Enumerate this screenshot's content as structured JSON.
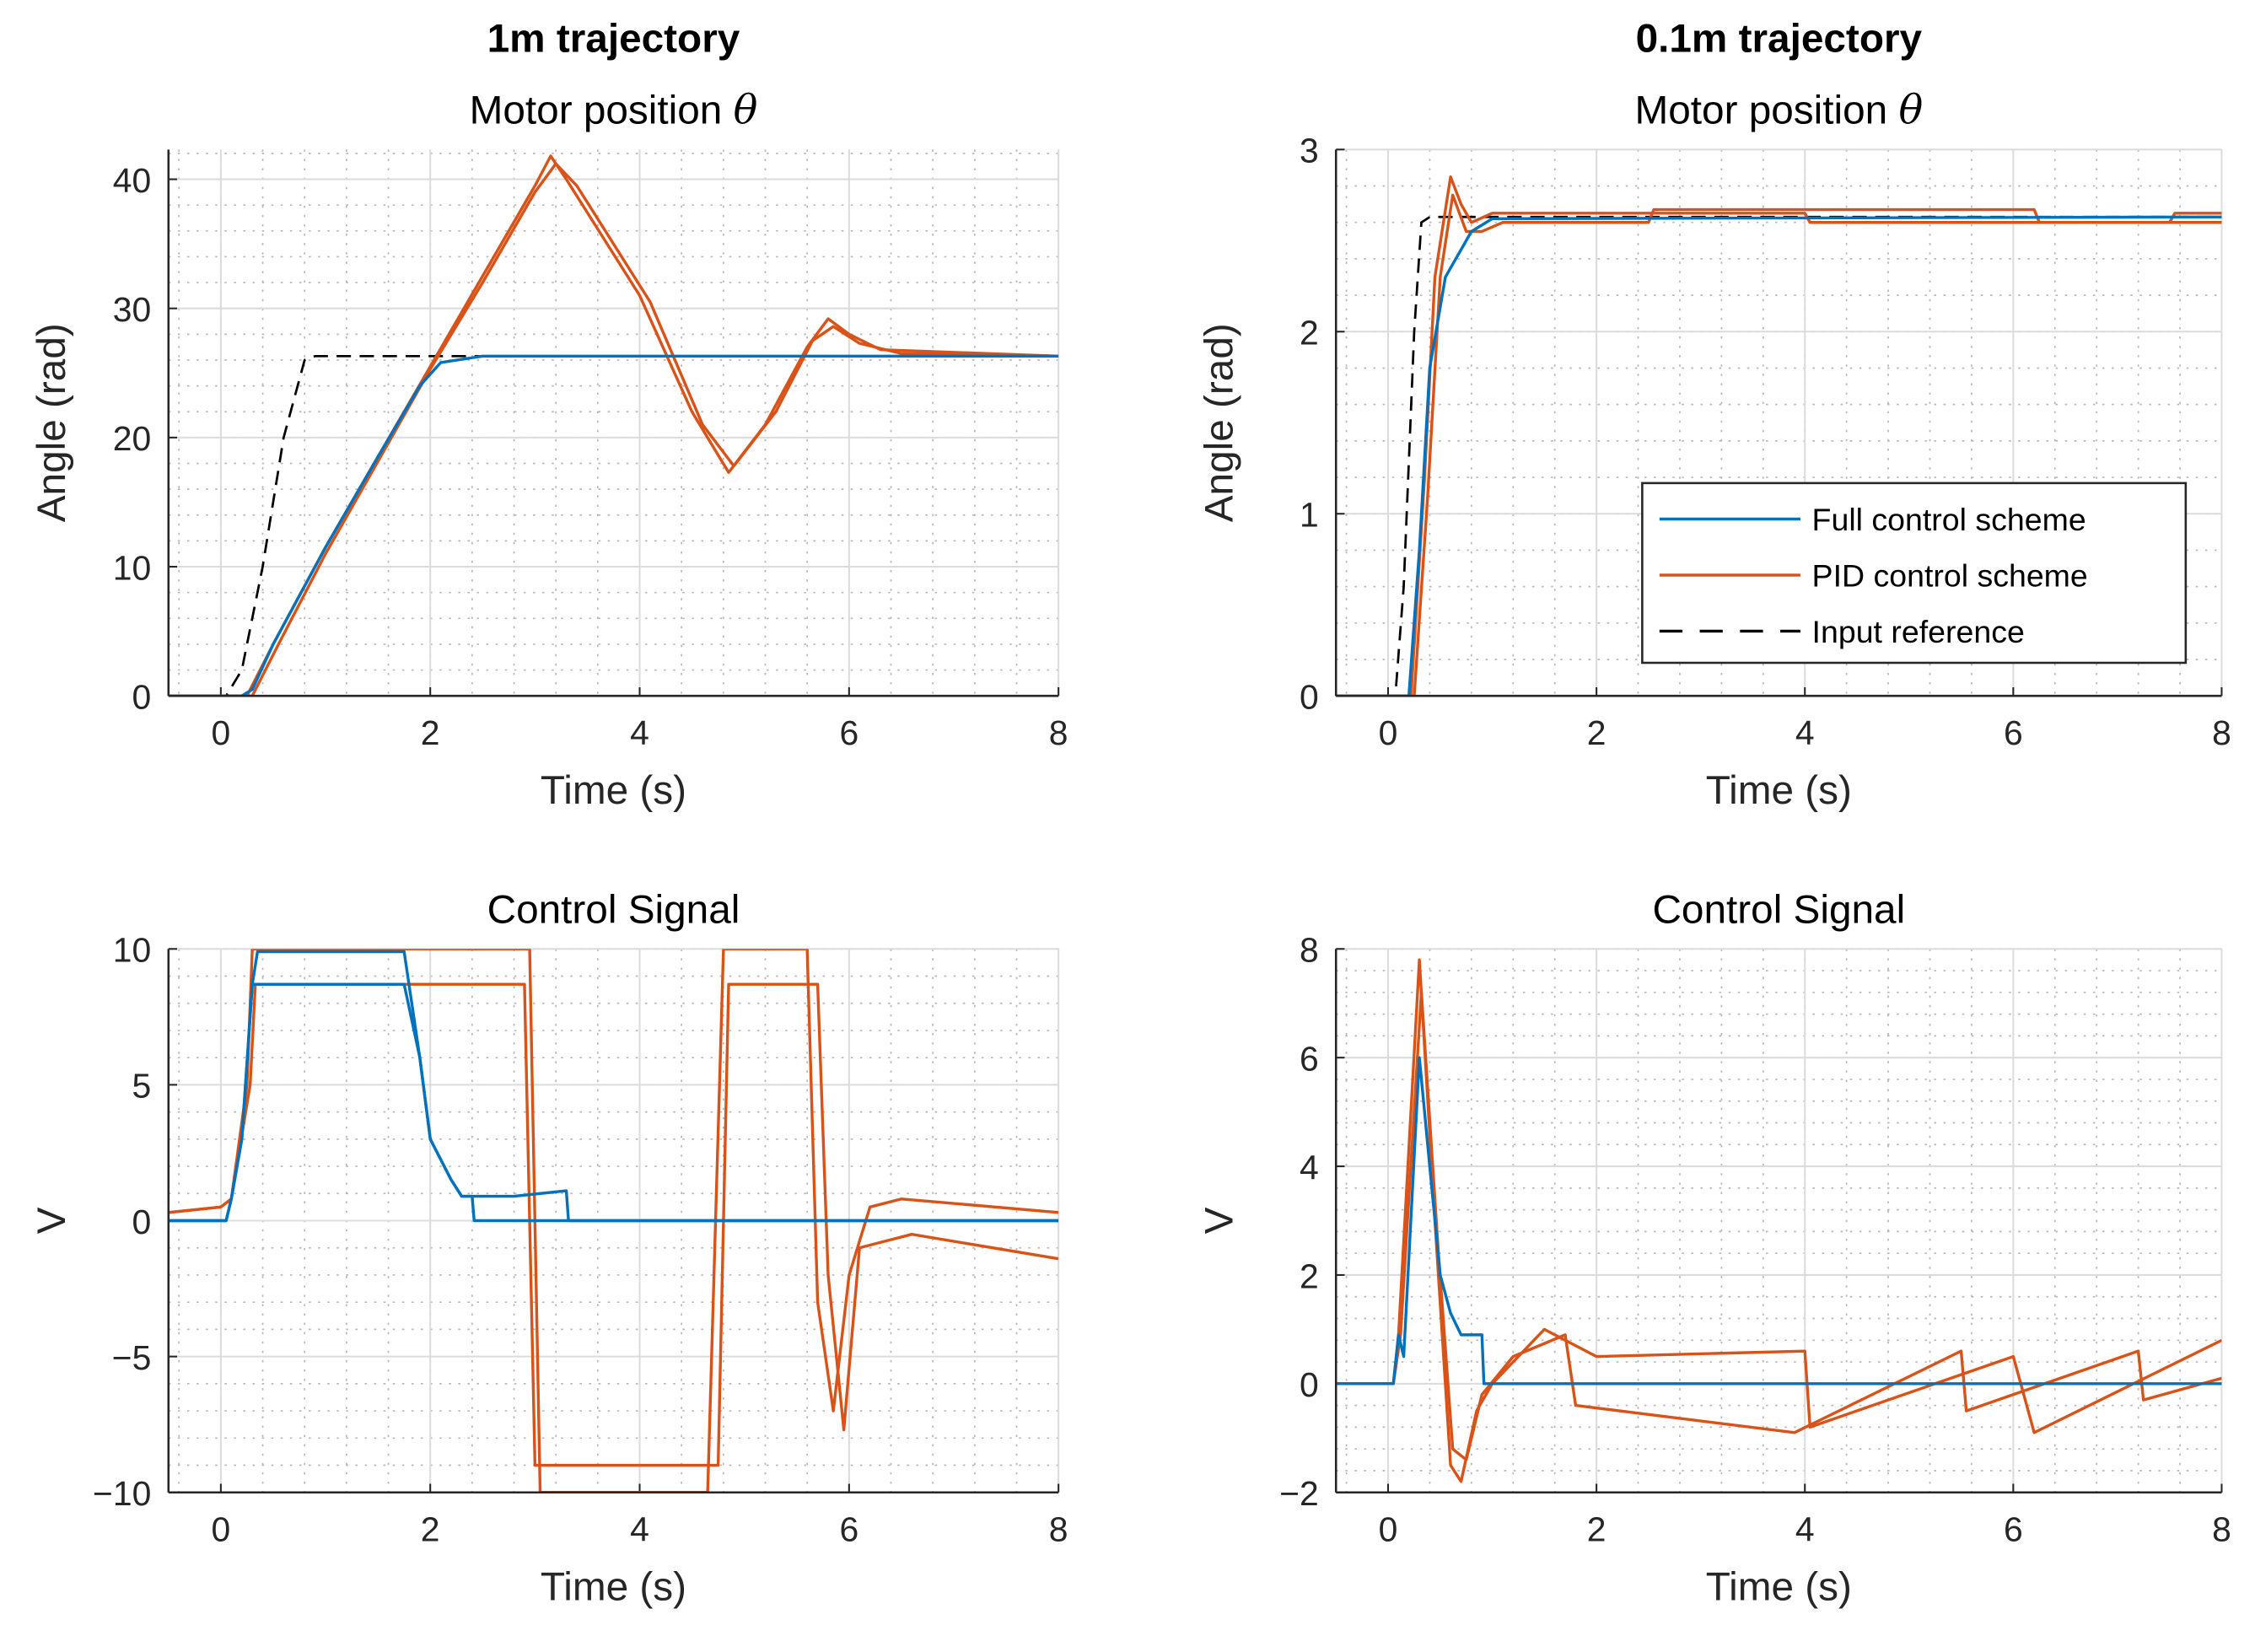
{
  "colors": {
    "full": "#0072BD",
    "pid": "#D95319",
    "ref": "#000000"
  },
  "legend": [
    "Full control scheme",
    "PID control scheme",
    "Input reference"
  ],
  "chart_data": [
    {
      "type": "line",
      "supertitle": "1m trajectory",
      "title": "Motor position",
      "title_symbol": "θ",
      "xlabel": "Time (s)",
      "ylabel": "Angle (rad)",
      "xlim": [
        -0.5,
        8
      ],
      "ylim": [
        0,
        42.3
      ],
      "xticks": [
        0,
        2,
        4,
        6,
        8
      ],
      "xtick_labels": [
        "0",
        "2",
        "4",
        "6",
        "8"
      ],
      "yticks": [
        0,
        10,
        20,
        30,
        40
      ],
      "ytick_labels": [
        "0",
        "10",
        "20",
        "30",
        "40"
      ],
      "xminor": 0.4,
      "yminor": 2,
      "grid": true,
      "series": [
        {
          "name": "Input reference",
          "style": "dashed",
          "color": "ref",
          "runs": [
            [
              [
                -0.5,
                0
              ],
              [
                0.05,
                0
              ],
              [
                0.2,
                2
              ],
              [
                0.4,
                10
              ],
              [
                0.6,
                20
              ],
              [
                0.8,
                26
              ],
              [
                0.9,
                26.3
              ],
              [
                8,
                26.3
              ]
            ]
          ]
        },
        {
          "name": "PID control scheme",
          "color": "pid",
          "runs": [
            [
              [
                -0.5,
                0
              ],
              [
                0.25,
                0
              ],
              [
                0.5,
                4
              ],
              [
                1,
                11.5
              ],
              [
                2,
                25.5
              ],
              [
                2.5,
                32.5
              ],
              [
                3,
                39.5
              ],
              [
                3.15,
                41.8
              ],
              [
                3.3,
                40
              ],
              [
                4,
                31
              ],
              [
                4.5,
                22
              ],
              [
                4.85,
                17.3
              ],
              [
                5.2,
                21
              ],
              [
                5.6,
                27
              ],
              [
                5.8,
                29.2
              ],
              [
                6,
                28
              ],
              [
                6.3,
                26.8
              ],
              [
                8,
                26.3
              ]
            ],
            [
              [
                -0.5,
                0
              ],
              [
                0.3,
                0
              ],
              [
                0.55,
                4
              ],
              [
                1,
                11
              ],
              [
                2,
                25.3
              ],
              [
                2.5,
                32
              ],
              [
                3,
                39
              ],
              [
                3.2,
                41.2
              ],
              [
                3.4,
                39.5
              ],
              [
                4.1,
                30.5
              ],
              [
                4.6,
                21
              ],
              [
                4.9,
                17.8
              ],
              [
                5.3,
                22
              ],
              [
                5.65,
                27.5
              ],
              [
                5.85,
                28.6
              ],
              [
                6.1,
                27.3
              ],
              [
                6.5,
                26.5
              ],
              [
                8,
                26.3
              ]
            ]
          ]
        },
        {
          "name": "Full control scheme",
          "color": "full",
          "runs": [
            [
              [
                -0.5,
                0
              ],
              [
                0.2,
                0
              ],
              [
                0.3,
                0.5
              ],
              [
                0.5,
                4
              ],
              [
                1,
                11.5
              ],
              [
                1.5,
                18.5
              ],
              [
                1.9,
                24
              ],
              [
                2.1,
                25.8
              ],
              [
                2.5,
                26.3
              ],
              [
                8,
                26.3
              ]
            ]
          ]
        }
      ]
    },
    {
      "type": "line",
      "supertitle": "0.1m trajectory",
      "title": "Motor position",
      "title_symbol": "θ",
      "xlabel": "Time (s)",
      "ylabel": "Angle (rad)",
      "xlim": [
        -0.5,
        8
      ],
      "ylim": [
        0,
        3
      ],
      "xticks": [
        0,
        2,
        4,
        6,
        8
      ],
      "xtick_labels": [
        "0",
        "2",
        "4",
        "6",
        "8"
      ],
      "yticks": [
        0,
        1,
        2,
        3
      ],
      "ytick_labels": [
        "0",
        "1",
        "2",
        "3"
      ],
      "xminor": 0.4,
      "yminor": 0.2,
      "grid": true,
      "legend_position": "bottom-right",
      "series": [
        {
          "name": "Input reference",
          "style": "dashed",
          "color": "ref",
          "runs": [
            [
              [
                -0.5,
                0
              ],
              [
                0.07,
                0
              ],
              [
                0.15,
                0.6
              ],
              [
                0.25,
                2
              ],
              [
                0.32,
                2.6
              ],
              [
                0.4,
                2.63
              ],
              [
                8,
                2.63
              ]
            ]
          ]
        },
        {
          "name": "PID control scheme",
          "color": "pid",
          "runs": [
            [
              [
                -0.5,
                0
              ],
              [
                0.22,
                0
              ],
              [
                0.35,
                1.2
              ],
              [
                0.45,
                2.3
              ],
              [
                0.6,
                2.85
              ],
              [
                0.7,
                2.7
              ],
              [
                0.8,
                2.6
              ],
              [
                1,
                2.65
              ],
              [
                4,
                2.65
              ],
              [
                4.05,
                2.6
              ],
              [
                7.5,
                2.6
              ],
              [
                7.55,
                2.65
              ],
              [
                8,
                2.65
              ]
            ],
            [
              [
                -0.5,
                0
              ],
              [
                0.25,
                0
              ],
              [
                0.38,
                1.1
              ],
              [
                0.5,
                2.3
              ],
              [
                0.62,
                2.75
              ],
              [
                0.75,
                2.55
              ],
              [
                0.9,
                2.55
              ],
              [
                1.1,
                2.6
              ],
              [
                2.5,
                2.6
              ],
              [
                2.55,
                2.67
              ],
              [
                6.2,
                2.67
              ],
              [
                6.25,
                2.6
              ],
              [
                8,
                2.6
              ]
            ]
          ]
        },
        {
          "name": "Full control scheme",
          "color": "full",
          "runs": [
            [
              [
                -0.5,
                0
              ],
              [
                0.2,
                0
              ],
              [
                0.3,
                0.8
              ],
              [
                0.4,
                1.8
              ],
              [
                0.55,
                2.3
              ],
              [
                0.8,
                2.55
              ],
              [
                1,
                2.62
              ],
              [
                8,
                2.63
              ]
            ]
          ]
        }
      ]
    },
    {
      "type": "line",
      "title": "Control Signal",
      "xlabel": "Time (s)",
      "ylabel": "V",
      "xlim": [
        -0.5,
        8
      ],
      "ylim": [
        -10,
        10
      ],
      "xticks": [
        0,
        2,
        4,
        6,
        8
      ],
      "xtick_labels": [
        "0",
        "2",
        "4",
        "6",
        "8"
      ],
      "yticks": [
        -10,
        -5,
        0,
        5,
        10
      ],
      "ytick_labels": [
        "−10",
        "−5",
        "0",
        "5",
        "10"
      ],
      "xminor": 0.4,
      "yminor": 1,
      "grid": true,
      "series": [
        {
          "name": "PID control scheme",
          "color": "pid",
          "runs": [
            [
              [
                -0.5,
                0.3
              ],
              [
                0,
                0.5
              ],
              [
                0.1,
                0.8
              ],
              [
                0.25,
                5
              ],
              [
                0.3,
                10
              ],
              [
                2.95,
                10
              ],
              [
                3.05,
                -10
              ],
              [
                4.65,
                -10
              ],
              [
                4.8,
                10
              ],
              [
                5.6,
                10
              ],
              [
                5.7,
                -3
              ],
              [
                5.85,
                -7
              ],
              [
                6,
                -2
              ],
              [
                6.2,
                0.5
              ],
              [
                6.5,
                0.8
              ],
              [
                8,
                0.3
              ]
            ],
            [
              [
                -0.5,
                0.3
              ],
              [
                0,
                0.5
              ],
              [
                0.1,
                0.8
              ],
              [
                0.28,
                5
              ],
              [
                0.33,
                8.7
              ],
              [
                2.9,
                8.7
              ],
              [
                3.0,
                -9
              ],
              [
                4.75,
                -9
              ],
              [
                4.85,
                8.7
              ],
              [
                5.7,
                8.7
              ],
              [
                5.8,
                -2
              ],
              [
                5.95,
                -7.7
              ],
              [
                6.1,
                -1
              ],
              [
                6.3,
                -0.8
              ],
              [
                6.6,
                -0.5
              ],
              [
                8,
                -1.4
              ]
            ]
          ]
        },
        {
          "name": "Full control scheme",
          "color": "full",
          "runs": [
            [
              [
                -0.5,
                0
              ],
              [
                0.05,
                0
              ],
              [
                0.1,
                0.8
              ],
              [
                0.2,
                3
              ],
              [
                0.3,
                8.7
              ],
              [
                0.35,
                9.9
              ],
              [
                1.75,
                9.9
              ],
              [
                1.9,
                6
              ],
              [
                2,
                3
              ],
              [
                2.2,
                1.5
              ],
              [
                2.3,
                0.9
              ],
              [
                2.8,
                0.9
              ],
              [
                3.3,
                1.1
              ],
              [
                3.32,
                0
              ],
              [
                8,
                0
              ]
            ],
            [
              [
                -0.5,
                0
              ],
              [
                0.05,
                0
              ],
              [
                0.1,
                0.8
              ],
              [
                0.2,
                3
              ],
              [
                0.3,
                8.7
              ],
              [
                1.75,
                8.7
              ],
              [
                1.9,
                6
              ],
              [
                2,
                3
              ],
              [
                2.2,
                1.5
              ],
              [
                2.3,
                0.9
              ],
              [
                2.4,
                0.9
              ],
              [
                2.42,
                0
              ],
              [
                8,
                0
              ]
            ]
          ]
        }
      ]
    },
    {
      "type": "line",
      "title": "Control Signal",
      "xlabel": "Time (s)",
      "ylabel": "V",
      "xlim": [
        -0.5,
        8
      ],
      "ylim": [
        -2,
        8
      ],
      "xticks": [
        0,
        2,
        4,
        6,
        8
      ],
      "xtick_labels": [
        "0",
        "2",
        "4",
        "6",
        "8"
      ],
      "yticks": [
        -2,
        0,
        2,
        4,
        6,
        8
      ],
      "ytick_labels": [
        "−2",
        "0",
        "2",
        "4",
        "6",
        "8"
      ],
      "xminor": 0.4,
      "yminor": 0.4,
      "grid": true,
      "series": [
        {
          "name": "PID control scheme",
          "color": "pid",
          "runs": [
            [
              [
                -0.5,
                0
              ],
              [
                0.05,
                0
              ],
              [
                0.1,
                0.9
              ],
              [
                0.3,
                7.8
              ],
              [
                0.45,
                3
              ],
              [
                0.6,
                -1.5
              ],
              [
                0.7,
                -1.8
              ],
              [
                0.85,
                -0.5
              ],
              [
                1,
                0
              ],
              [
                1.5,
                1
              ],
              [
                2,
                0.5
              ],
              [
                4,
                0.6
              ],
              [
                4.05,
                -0.8
              ],
              [
                6,
                0.5
              ],
              [
                6.2,
                -0.9
              ],
              [
                8,
                0.8
              ]
            ],
            [
              [
                -0.5,
                0
              ],
              [
                0.05,
                0
              ],
              [
                0.12,
                0.9
              ],
              [
                0.32,
                7.2
              ],
              [
                0.48,
                2.5
              ],
              [
                0.62,
                -1.2
              ],
              [
                0.75,
                -1.4
              ],
              [
                0.9,
                -0.2
              ],
              [
                1.2,
                0.5
              ],
              [
                1.7,
                0.9
              ],
              [
                1.8,
                -0.4
              ],
              [
                3.9,
                -0.9
              ],
              [
                5.5,
                0.6
              ],
              [
                5.55,
                -0.5
              ],
              [
                7.2,
                0.6
              ],
              [
                7.25,
                -0.3
              ],
              [
                8,
                0.1
              ]
            ]
          ]
        },
        {
          "name": "Full control scheme",
          "color": "full",
          "runs": [
            [
              [
                -0.5,
                0
              ],
              [
                0.05,
                0
              ],
              [
                0.1,
                0.9
              ],
              [
                0.15,
                0.5
              ],
              [
                0.3,
                6
              ],
              [
                0.4,
                4
              ],
              [
                0.5,
                2
              ],
              [
                0.6,
                1.3
              ],
              [
                0.7,
                0.9
              ],
              [
                0.9,
                0.9
              ],
              [
                0.92,
                0
              ],
              [
                8,
                0
              ]
            ]
          ]
        }
      ]
    }
  ]
}
